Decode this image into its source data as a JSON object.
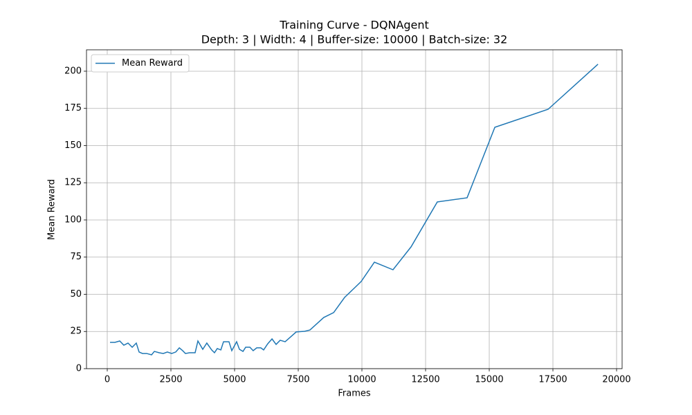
{
  "chart_data": {
    "type": "line",
    "title": "Training Curve - DQNAgent",
    "subtitle": "Depth: 3 | Width: 4 | Buffer-size: 10000 | Batch-size: 32",
    "x_label": "Frames",
    "y_label": "Mean Reward",
    "x": [
      109,
      300,
      490,
      650,
      815,
      980,
      1140,
      1250,
      1385,
      1550,
      1740,
      1850,
      2040,
      2200,
      2360,
      2530,
      2690,
      2830,
      2960,
      3070,
      3230,
      3450,
      3560,
      3750,
      3910,
      4100,
      4210,
      4320,
      4460,
      4565,
      4780,
      4890,
      5080,
      5190,
      5330,
      5435,
      5600,
      5730,
      5870,
      6030,
      6140,
      6300,
      6470,
      6630,
      6790,
      6985,
      7170,
      7420,
      7750,
      7960,
      8230,
      8500,
      8890,
      9320,
      9970,
      10490,
      11220,
      11930,
      12960,
      14130,
      15220,
      17310,
      19270
    ],
    "series": [
      {
        "name": "Mean Reward",
        "color": "#1f77b4",
        "values": [
          17.7,
          17.7,
          18.6,
          15.8,
          17.2,
          14.4,
          17.2,
          11.2,
          10.2,
          10.2,
          9.3,
          11.6,
          10.7,
          10.2,
          11.2,
          10.2,
          11.2,
          14.0,
          12.1,
          10.2,
          10.7,
          10.7,
          18.6,
          13.0,
          17.2,
          12.6,
          10.7,
          13.5,
          12.6,
          18.1,
          18.1,
          12.1,
          18.1,
          13.0,
          11.6,
          14.4,
          14.4,
          12.1,
          14.0,
          14.0,
          12.6,
          16.7,
          20.0,
          16.3,
          19.1,
          18.1,
          20.9,
          24.7,
          25.1,
          26.0,
          30.2,
          34.4,
          37.7,
          47.9,
          58.6,
          71.6,
          66.5,
          81.9,
          112.1,
          114.9,
          162.3,
          174.4,
          204.7
        ]
      }
    ],
    "xlim": [
      -815,
      20217
    ],
    "ylim": [
      0,
      214.4
    ],
    "xticks": [
      0,
      2500,
      5000,
      7500,
      10000,
      12500,
      15000,
      17500,
      20000
    ],
    "yticks": [
      0,
      25,
      50,
      75,
      100,
      125,
      150,
      175,
      200
    ],
    "grid": true,
    "legend": "upper left"
  }
}
